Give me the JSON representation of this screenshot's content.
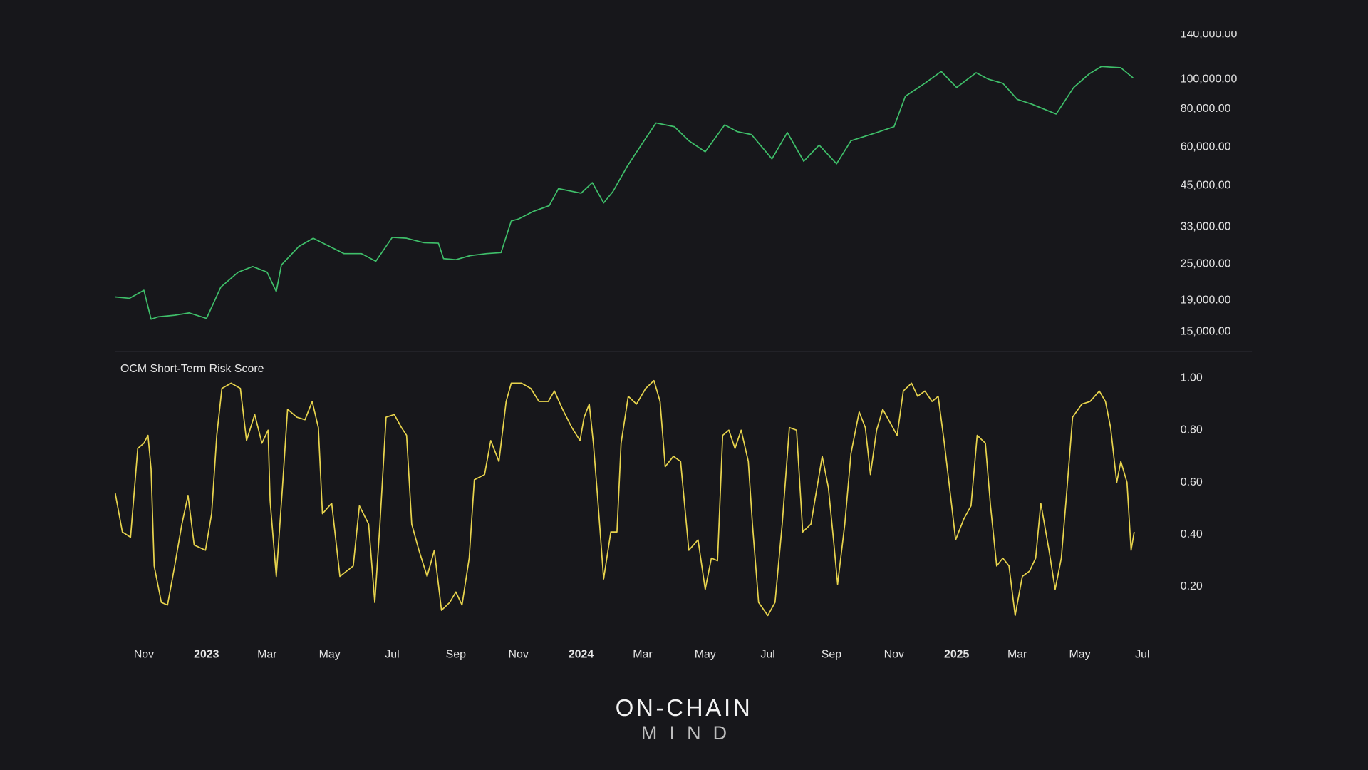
{
  "chart_data": [
    {
      "type": "line",
      "yscale": "log",
      "color": "#3fbf6a",
      "xlim": [
        "2022-10-04",
        "2025-07-27"
      ],
      "ylim": [
        13000,
        146000
      ],
      "yticks": [
        {
          "value": 15000,
          "label": "15,000.00"
        },
        {
          "value": 19000,
          "label": "19,000.00"
        },
        {
          "value": 25000,
          "label": "25,000.00"
        },
        {
          "value": 33000,
          "label": "33,000.00"
        },
        {
          "value": 45000,
          "label": "45,000.00"
        },
        {
          "value": 60000,
          "label": "60,000.00"
        },
        {
          "value": 80000,
          "label": "80,000.00"
        },
        {
          "value": 100000,
          "label": "100,000.00"
        },
        {
          "value": 140000,
          "label": "140,000.00"
        }
      ],
      "x": [
        "2022-10-04",
        "2022-10-18",
        "2022-11-01",
        "2022-11-08",
        "2022-11-15",
        "2022-12-01",
        "2022-12-15",
        "2023-01-01",
        "2023-01-15",
        "2023-02-01",
        "2023-02-15",
        "2023-03-01",
        "2023-03-10",
        "2023-03-15",
        "2023-04-01",
        "2023-04-15",
        "2023-05-01",
        "2023-05-15",
        "2023-06-01",
        "2023-06-15",
        "2023-07-01",
        "2023-07-15",
        "2023-08-01",
        "2023-08-15",
        "2023-08-20",
        "2023-09-01",
        "2023-09-15",
        "2023-10-01",
        "2023-10-15",
        "2023-10-25",
        "2023-11-01",
        "2023-11-15",
        "2023-12-01",
        "2023-12-10",
        "2024-01-01",
        "2024-01-12",
        "2024-01-23",
        "2024-02-01",
        "2024-02-15",
        "2024-03-01",
        "2024-03-14",
        "2024-04-01",
        "2024-04-15",
        "2024-05-01",
        "2024-05-20",
        "2024-06-01",
        "2024-06-15",
        "2024-07-05",
        "2024-07-20",
        "2024-08-05",
        "2024-08-20",
        "2024-09-06",
        "2024-09-20",
        "2024-10-15",
        "2024-11-01",
        "2024-11-12",
        "2024-12-01",
        "2024-12-17",
        "2025-01-01",
        "2025-01-20",
        "2025-02-01",
        "2025-02-15",
        "2025-03-01",
        "2025-03-15",
        "2025-04-08",
        "2025-04-25",
        "2025-05-10",
        "2025-05-22",
        "2025-06-10",
        "2025-06-22"
      ],
      "values": [
        19500,
        19300,
        20500,
        16500,
        16800,
        17000,
        17300,
        16600,
        21000,
        23500,
        24500,
        23500,
        20300,
        24800,
        28500,
        30300,
        28500,
        27000,
        27000,
        25500,
        30500,
        30300,
        29300,
        29200,
        26000,
        25800,
        26600,
        27000,
        27200,
        34500,
        35000,
        37000,
        38700,
        44000,
        42500,
        46000,
        39500,
        43000,
        52000,
        62000,
        72000,
        70000,
        63000,
        58000,
        71000,
        67500,
        66000,
        55000,
        67000,
        54000,
        61000,
        53000,
        63000,
        67000,
        70000,
        88000,
        97000,
        106000,
        94000,
        105000,
        100000,
        97000,
        86000,
        83000,
        77000,
        94000,
        104000,
        110000,
        109000,
        101000
      ]
    },
    {
      "type": "line",
      "color": "#e8d44d",
      "xlim": [
        "2022-10-04",
        "2025-07-27"
      ],
      "ylim": [
        0.04,
        1.1
      ],
      "yticks": [
        {
          "value": 0.2,
          "label": "0.20"
        },
        {
          "value": 0.4,
          "label": "0.40"
        },
        {
          "value": 0.6,
          "label": "0.60"
        },
        {
          "value": 0.8,
          "label": "0.80"
        },
        {
          "value": 1,
          "label": "1.00"
        }
      ],
      "xticks": [
        {
          "value": "2022-11-01",
          "label": "Nov"
        },
        {
          "value": "2023-01-01",
          "label": "2023"
        },
        {
          "value": "2023-03-01",
          "label": "Mar"
        },
        {
          "value": "2023-05-01",
          "label": "May"
        },
        {
          "value": "2023-07-01",
          "label": "Jul"
        },
        {
          "value": "2023-09-01",
          "label": "Sep"
        },
        {
          "value": "2023-11-01",
          "label": "Nov"
        },
        {
          "value": "2024-01-01",
          "label": "2024"
        },
        {
          "value": "2024-03-01",
          "label": "Mar"
        },
        {
          "value": "2024-05-01",
          "label": "May"
        },
        {
          "value": "2024-07-01",
          "label": "Jul"
        },
        {
          "value": "2024-09-01",
          "label": "Sep"
        },
        {
          "value": "2024-11-01",
          "label": "Nov"
        },
        {
          "value": "2025-01-01",
          "label": "2025"
        },
        {
          "value": "2025-03-01",
          "label": "Mar"
        },
        {
          "value": "2025-05-01",
          "label": "May"
        },
        {
          "value": "2025-07-01",
          "label": "Jul"
        }
      ],
      "x": [
        "2022-10-04",
        "2022-10-11",
        "2022-10-19",
        "2022-10-26",
        "2022-11-01",
        "2022-11-05",
        "2022-11-08",
        "2022-11-11",
        "2022-11-18",
        "2022-11-24",
        "2022-12-01",
        "2022-12-08",
        "2022-12-14",
        "2022-12-20",
        "2022-12-31",
        "2023-01-06",
        "2023-01-11",
        "2023-01-16",
        "2023-01-25",
        "2023-02-03",
        "2023-02-09",
        "2023-02-17",
        "2023-02-24",
        "2023-03-02",
        "2023-03-04",
        "2023-03-10",
        "2023-03-16",
        "2023-03-21",
        "2023-03-30",
        "2023-04-07",
        "2023-04-14",
        "2023-04-20",
        "2023-04-24",
        "2023-05-03",
        "2023-05-11",
        "2023-05-24",
        "2023-05-30",
        "2023-06-08",
        "2023-06-14",
        "2023-06-19",
        "2023-06-25",
        "2023-07-03",
        "2023-07-10",
        "2023-07-15",
        "2023-07-20",
        "2023-07-27",
        "2023-08-04",
        "2023-08-11",
        "2023-08-18",
        "2023-08-26",
        "2023-09-01",
        "2023-09-07",
        "2023-09-14",
        "2023-09-19",
        "2023-09-29",
        "2023-10-05",
        "2023-10-13",
        "2023-10-20",
        "2023-10-25",
        "2023-11-04",
        "2023-11-13",
        "2023-11-21",
        "2023-11-30",
        "2023-12-06",
        "2023-12-14",
        "2023-12-23",
        "2023-12-31",
        "2024-01-04",
        "2024-01-09",
        "2024-01-13",
        "2024-01-17",
        "2024-01-23",
        "2024-01-30",
        "2024-02-05",
        "2024-02-09",
        "2024-02-16",
        "2024-02-24",
        "2024-03-04",
        "2024-03-12",
        "2024-03-18",
        "2024-03-23",
        "2024-03-31",
        "2024-04-07",
        "2024-04-15",
        "2024-04-24",
        "2024-05-01",
        "2024-05-07",
        "2024-05-13",
        "2024-05-18",
        "2024-05-24",
        "2024-05-30",
        "2024-06-05",
        "2024-06-12",
        "2024-06-16",
        "2024-06-22",
        "2024-07-01",
        "2024-07-08",
        "2024-07-15",
        "2024-07-22",
        "2024-07-29",
        "2024-08-04",
        "2024-08-12",
        "2024-08-23",
        "2024-08-29",
        "2024-09-03",
        "2024-09-07",
        "2024-09-14",
        "2024-09-20",
        "2024-09-28",
        "2024-10-04",
        "2024-10-09",
        "2024-10-15",
        "2024-10-21",
        "2024-10-28",
        "2024-11-04",
        "2024-11-10",
        "2024-11-18",
        "2024-11-24",
        "2024-12-01",
        "2024-12-08",
        "2024-12-14",
        "2024-12-20",
        "2024-12-26",
        "2024-12-31",
        "2025-01-08",
        "2025-01-15",
        "2025-01-21",
        "2025-01-29",
        "2025-02-03",
        "2025-02-09",
        "2025-02-15",
        "2025-02-21",
        "2025-02-27",
        "2025-03-06",
        "2025-03-13",
        "2025-03-19",
        "2025-03-24",
        "2025-04-01",
        "2025-04-07",
        "2025-04-13",
        "2025-04-18",
        "2025-04-24",
        "2025-05-03",
        "2025-05-11",
        "2025-05-20",
        "2025-05-26",
        "2025-05-31",
        "2025-06-06",
        "2025-06-10",
        "2025-06-16",
        "2025-06-20",
        "2025-06-23"
      ],
      "series": [
        {
          "name": "OCM Short-Term Risk Score",
          "color": "#e8d44d",
          "values": [
            0.56,
            0.41,
            0.39,
            0.73,
            0.75,
            0.78,
            0.65,
            0.28,
            0.14,
            0.13,
            0.28,
            0.44,
            0.55,
            0.36,
            0.34,
            0.48,
            0.78,
            0.96,
            0.98,
            0.96,
            0.76,
            0.86,
            0.75,
            0.8,
            0.53,
            0.24,
            0.58,
            0.88,
            0.85,
            0.84,
            0.91,
            0.81,
            0.48,
            0.52,
            0.24,
            0.28,
            0.51,
            0.44,
            0.14,
            0.44,
            0.85,
            0.86,
            0.81,
            0.78,
            0.44,
            0.34,
            0.24,
            0.34,
            0.11,
            0.14,
            0.18,
            0.13,
            0.31,
            0.61,
            0.63,
            0.76,
            0.68,
            0.91,
            0.98,
            0.98,
            0.96,
            0.91,
            0.91,
            0.95,
            0.88,
            0.81,
            0.76,
            0.85,
            0.9,
            0.75,
            0.55,
            0.23,
            0.41,
            0.41,
            0.75,
            0.93,
            0.9,
            0.96,
            0.99,
            0.91,
            0.66,
            0.7,
            0.68,
            0.34,
            0.38,
            0.19,
            0.31,
            0.3,
            0.78,
            0.8,
            0.73,
            0.8,
            0.68,
            0.44,
            0.14,
            0.09,
            0.14,
            0.44,
            0.81,
            0.8,
            0.41,
            0.44,
            0.7,
            0.58,
            0.38,
            0.21,
            0.44,
            0.71,
            0.87,
            0.81,
            0.63,
            0.8,
            0.88,
            0.83,
            0.78,
            0.95,
            0.98,
            0.93,
            0.95,
            0.91,
            0.93,
            0.75,
            0.55,
            0.38,
            0.46,
            0.51,
            0.78,
            0.75,
            0.51,
            0.28,
            0.31,
            0.28,
            0.09,
            0.24,
            0.26,
            0.31,
            0.52,
            0.34,
            0.19,
            0.31,
            0.55,
            0.85,
            0.9,
            0.91,
            0.95,
            0.91,
            0.81,
            0.6,
            0.68,
            0.6,
            0.34,
            0.41
          ]
        }
      ]
    }
  ],
  "branding": {
    "name": "ON-CHAIN",
    "sub": "MIND"
  }
}
